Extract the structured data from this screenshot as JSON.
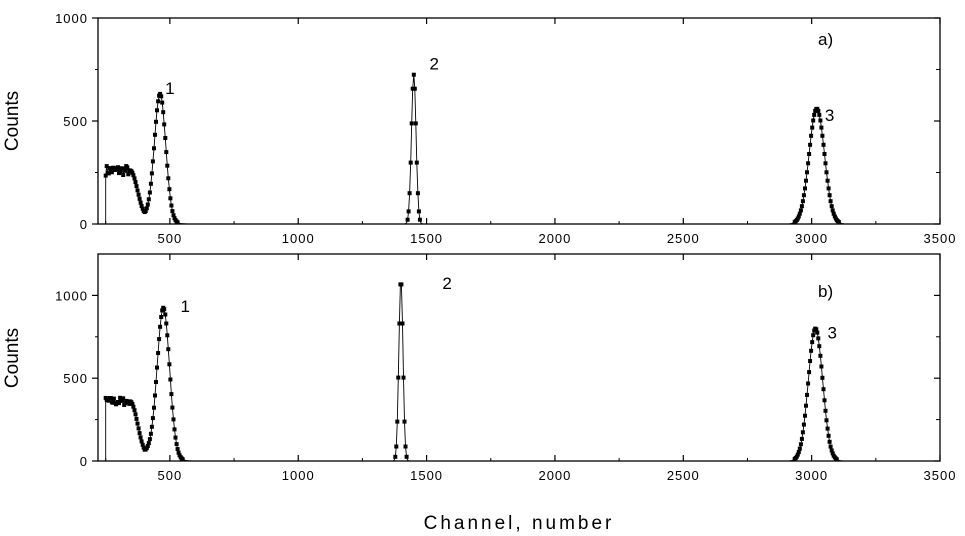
{
  "chart_data": [
    {
      "type": "line",
      "panel_label": "a)",
      "ylabel": "Counts",
      "xlim": [
        220,
        3500
      ],
      "ylim": [
        0,
        1000
      ],
      "xticks": [
        500,
        1000,
        1500,
        2000,
        2500,
        3000,
        3500
      ],
      "yticks": [
        0,
        500,
        1000
      ],
      "peak_labels": [
        {
          "text": "1",
          "x": 500,
          "y": 630
        },
        {
          "text": "2",
          "x": 1530,
          "y": 750
        },
        {
          "text": "3",
          "x": 3070,
          "y": 500
        }
      ],
      "series": [
        {
          "marker": "square",
          "components": [
            {
              "kind": "plateau",
              "x0": 250,
              "x1": 345,
              "level": 260,
              "noise": 25
            },
            {
              "kind": "valley",
              "center": 395,
              "width": 22,
              "floor": 40
            },
            {
              "kind": "peak",
              "center": 462,
              "sigma": 22,
              "height": 610
            },
            {
              "kind": "peak",
              "center": 1450,
              "sigma": 9,
              "height": 725
            },
            {
              "kind": "peak",
              "center": 3020,
              "sigma": 30,
              "height": 560
            }
          ]
        }
      ]
    },
    {
      "type": "line",
      "panel_label": "b)",
      "ylabel": "Counts",
      "xlabel": "Channel, number",
      "xlim": [
        220,
        3500
      ],
      "ylim": [
        0,
        1250
      ],
      "xticks": [
        500,
        1000,
        1500,
        2000,
        2500,
        3000,
        3500
      ],
      "yticks": [
        0,
        500,
        1000
      ],
      "peak_labels": [
        {
          "text": "1",
          "x": 560,
          "y": 900
        },
        {
          "text": "2",
          "x": 1580,
          "y": 1040
        },
        {
          "text": "3",
          "x": 3080,
          "y": 740
        }
      ],
      "series": [
        {
          "marker": "square",
          "components": [
            {
              "kind": "plateau",
              "x0": 250,
              "x1": 345,
              "level": 360,
              "noise": 25
            },
            {
              "kind": "valley",
              "center": 410,
              "width": 22,
              "floor": 55
            },
            {
              "kind": "peak",
              "center": 475,
              "sigma": 24,
              "height": 895
            },
            {
              "kind": "peak",
              "center": 1400,
              "sigma": 8,
              "height": 1100
            },
            {
              "kind": "peak",
              "center": 3015,
              "sigma": 28,
              "height": 800
            }
          ]
        }
      ]
    }
  ]
}
